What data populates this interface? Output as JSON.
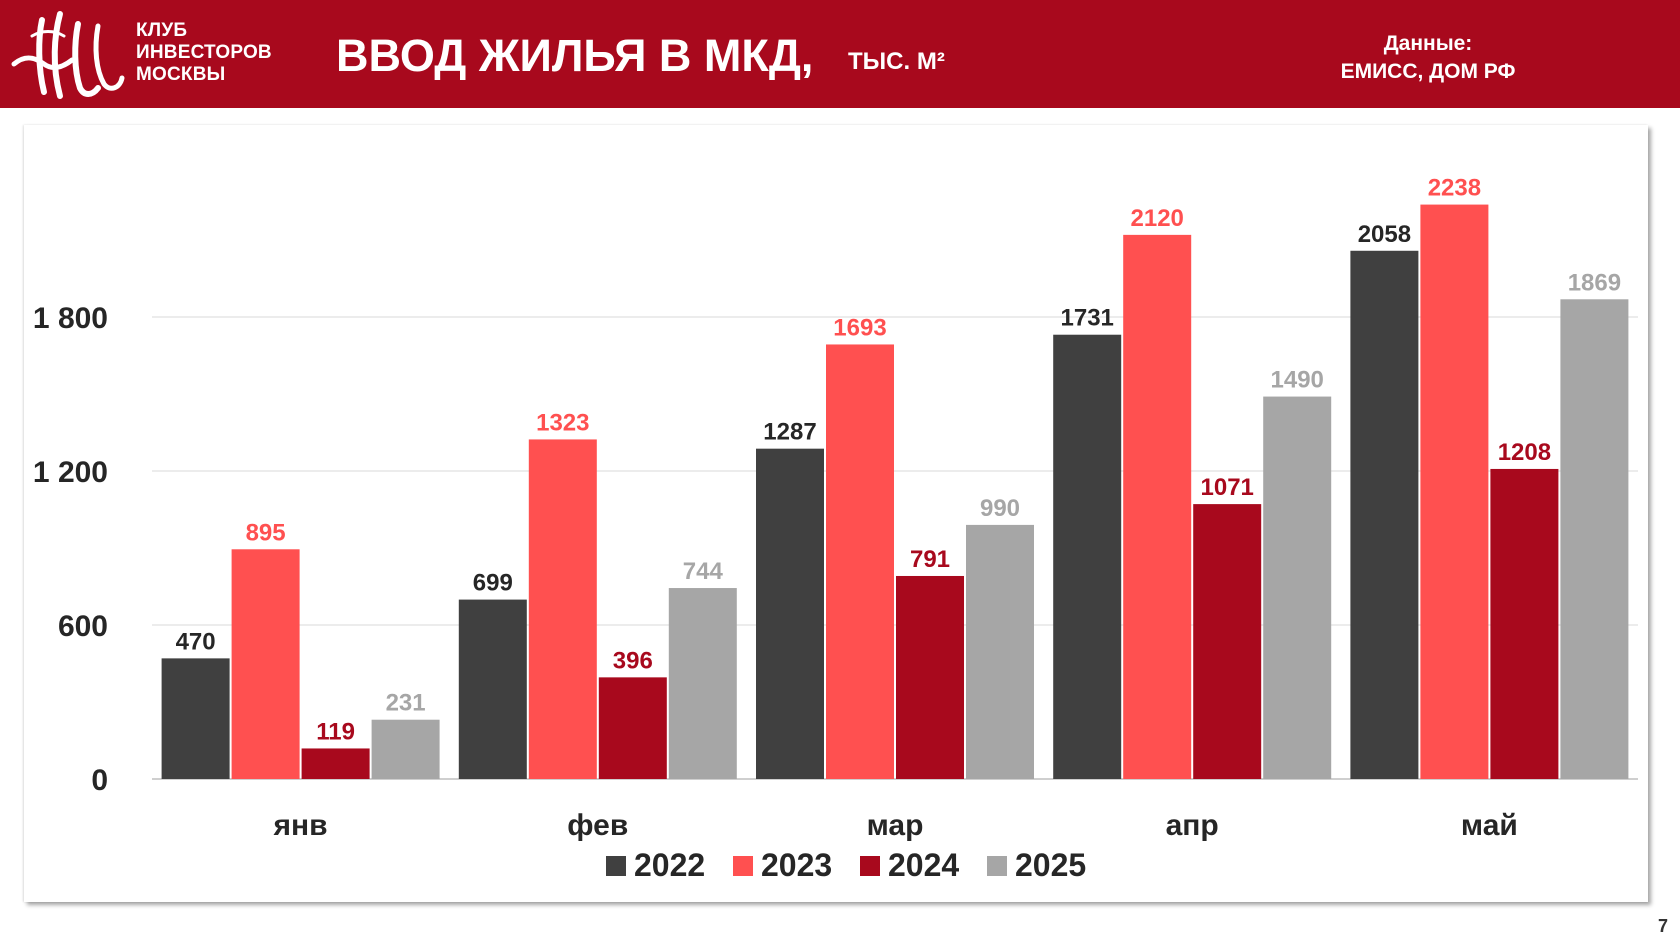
{
  "header": {
    "logo_lines": [
      "КЛУБ",
      "ИНВЕСТОРОВ",
      "МОСКВЫ"
    ],
    "title": "ВВОД ЖИЛЬЯ В МКД,",
    "unit": "ТЫС. М²",
    "source_label": "Данные:",
    "source_value": "ЕМИСС, ДОМ РФ",
    "brand_color": "#a8091d"
  },
  "page_number": "7",
  "chart_data": {
    "type": "bar",
    "title": "ВВОД ЖИЛЬЯ В МКД, тыс. м²",
    "categories": [
      "янв",
      "фев",
      "мар",
      "апр",
      "май"
    ],
    "series": [
      {
        "name": "2022",
        "color": "#404040",
        "label_color": "#262626",
        "values": [
          470,
          699,
          1287,
          1731,
          2058
        ]
      },
      {
        "name": "2023",
        "color": "#ff5050",
        "label_color": "#ff5050",
        "values": [
          895,
          1323,
          1693,
          2120,
          2238
        ]
      },
      {
        "name": "2024",
        "color": "#a8091d",
        "label_color": "#a8091d",
        "values": [
          119,
          396,
          791,
          1071,
          1208
        ]
      },
      {
        "name": "2025",
        "color": "#a6a6a6",
        "label_color": "#a6a6a6",
        "values": [
          231,
          744,
          990,
          1490,
          1869
        ]
      }
    ],
    "yticks": [
      0,
      600,
      1200,
      1800
    ],
    "ytick_labels": [
      "0",
      "600",
      "1 200",
      "1 800"
    ],
    "ylim": [
      0,
      2400
    ],
    "grid": true,
    "legend_position": "bottom-center",
    "xlabel": "",
    "ylabel": ""
  }
}
